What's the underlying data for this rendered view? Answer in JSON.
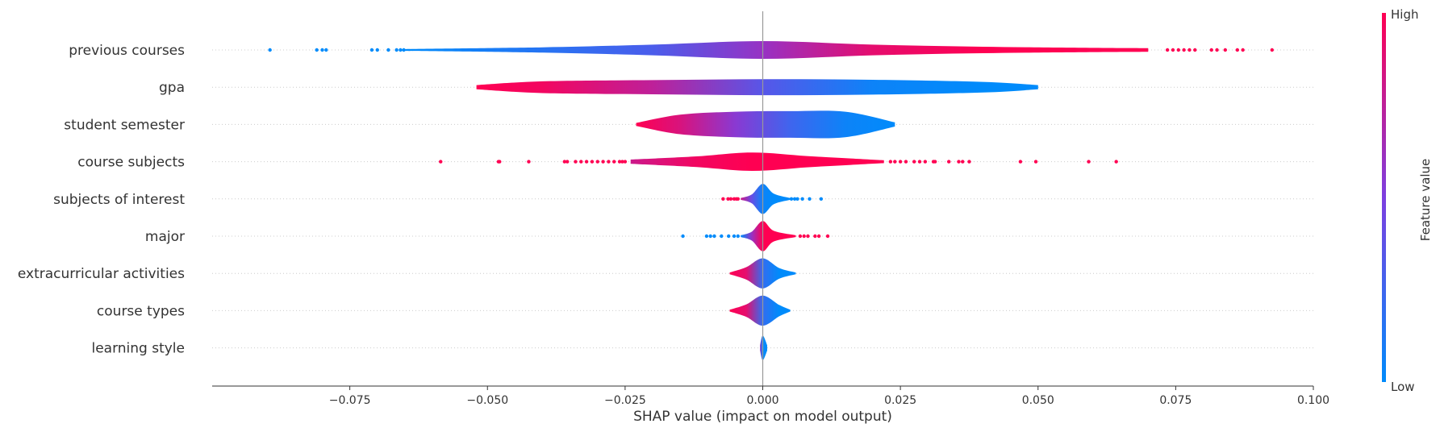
{
  "chart_data": {
    "type": "violin",
    "title": "",
    "xlabel": "SHAP value (impact on model output)",
    "xlim": [
      -0.1,
      0.1
    ],
    "xticks": [
      -0.075,
      -0.05,
      -0.025,
      0.0,
      0.025,
      0.05,
      0.075,
      0.1
    ],
    "xtick_labels": [
      "−0.075",
      "−0.050",
      "−0.025",
      "0.000",
      "0.025",
      "0.050",
      "0.075",
      "0.100"
    ],
    "zero_line": 0.0,
    "grid": false,
    "colorbar": {
      "label": "Feature value",
      "high_label": "High",
      "low_label": "Low",
      "low_color": "#008bfb",
      "mid_color": "#7d3fe0",
      "high_color": "#ff0052"
    },
    "features": [
      {
        "name": "previous courses",
        "range": [
          -0.065,
          0.07
        ],
        "violin": [
          [
            -0.065,
            0.05,
            0.0
          ],
          [
            -0.04,
            0.15,
            0.15
          ],
          [
            -0.02,
            0.3,
            0.3
          ],
          [
            0.0,
            0.5,
            0.6
          ],
          [
            0.02,
            0.3,
            0.9
          ],
          [
            0.04,
            0.18,
            1.0
          ],
          [
            0.06,
            0.12,
            1.0
          ],
          [
            0.07,
            0.1,
            1.0
          ]
        ],
        "outliers_low": [
          -0.0895,
          -0.081,
          -0.08,
          -0.0793,
          -0.071,
          -0.07,
          -0.068,
          -0.0665,
          -0.0658,
          -0.0652
        ],
        "outliers_high": [
          0.0735,
          0.0745,
          0.0755,
          0.0765,
          0.0775,
          0.0785,
          0.0815,
          0.0825,
          0.084,
          0.0862,
          0.0872,
          0.0925
        ]
      },
      {
        "name": "gpa",
        "range": [
          -0.052,
          0.05
        ],
        "violin": [
          [
            -0.052,
            0.12,
            1.0
          ],
          [
            -0.04,
            0.33,
            0.95
          ],
          [
            -0.02,
            0.4,
            0.75
          ],
          [
            0.0,
            0.45,
            0.35
          ],
          [
            0.02,
            0.42,
            0.05
          ],
          [
            0.04,
            0.3,
            0.0
          ],
          [
            0.05,
            0.12,
            0.0
          ]
        ],
        "outliers_low": [],
        "outliers_high": []
      },
      {
        "name": "student semester",
        "range": [
          -0.023,
          0.024
        ],
        "violin": [
          [
            -0.023,
            0.08,
            1.0
          ],
          [
            -0.015,
            0.55,
            0.85
          ],
          [
            -0.005,
            0.72,
            0.55
          ],
          [
            0.005,
            0.75,
            0.25
          ],
          [
            0.015,
            0.72,
            0.05
          ],
          [
            0.024,
            0.12,
            0.0
          ]
        ],
        "outliers_low": [],
        "outliers_high": []
      },
      {
        "name": "course subjects",
        "range": [
          -0.024,
          0.022
        ],
        "violin": [
          [
            -0.024,
            0.12,
            0.8
          ],
          [
            -0.012,
            0.3,
            0.95
          ],
          [
            -0.002,
            0.52,
            1.0
          ],
          [
            0.008,
            0.32,
            1.0
          ],
          [
            0.016,
            0.18,
            1.0
          ],
          [
            0.022,
            0.08,
            1.0
          ]
        ],
        "outliers_low": [
          -0.0585,
          -0.048,
          -0.0478,
          -0.0425,
          -0.036,
          -0.0355,
          -0.034,
          -0.033,
          -0.032,
          -0.031,
          -0.03,
          -0.029,
          -0.028,
          -0.027,
          -0.026,
          -0.0255,
          -0.025
        ],
        "outliers_high": [
          0.0232,
          0.024,
          0.025,
          0.026,
          0.0275,
          0.0285,
          0.0295,
          0.031,
          0.0313,
          0.0338,
          0.0356,
          0.0363,
          0.0375,
          0.0468,
          0.0496,
          0.0592,
          0.0642
        ]
      },
      {
        "name": "subjects of interest",
        "range": [
          -0.004,
          0.005
        ],
        "violin": [
          [
            -0.004,
            0.05,
            0.8
          ],
          [
            -0.002,
            0.25,
            0.4
          ],
          [
            0.0,
            0.85,
            0.05
          ],
          [
            0.002,
            0.3,
            0.0
          ],
          [
            0.005,
            0.05,
            0.0
          ]
        ],
        "outliers_low": [
          -0.0072,
          -0.0063,
          -0.0058,
          -0.0052,
          -0.0048,
          -0.0045
        ],
        "outliers_high": [
          0.0052,
          0.0058,
          0.0063,
          0.0072,
          0.0085,
          0.0106
        ]
      },
      {
        "name": "major",
        "range": [
          -0.004,
          0.006
        ],
        "violin": [
          [
            -0.004,
            0.05,
            0.0
          ],
          [
            -0.002,
            0.25,
            0.6
          ],
          [
            0.0,
            0.85,
            1.0
          ],
          [
            0.002,
            0.3,
            1.0
          ],
          [
            0.006,
            0.05,
            1.0
          ]
        ],
        "outliers_low": [
          -0.0145,
          -0.0102,
          -0.0095,
          -0.0088,
          -0.0075,
          -0.0062,
          -0.0052,
          -0.0045
        ],
        "outliers_high": [
          0.0068,
          0.0075,
          0.0082,
          0.0095,
          0.0102,
          0.0118
        ]
      },
      {
        "name": "extracurricular activities",
        "range": [
          -0.006,
          0.006
        ],
        "violin": [
          [
            -0.006,
            0.05,
            1.0
          ],
          [
            -0.003,
            0.35,
            0.9
          ],
          [
            0.0,
            0.85,
            0.2
          ],
          [
            0.003,
            0.3,
            0.0
          ],
          [
            0.006,
            0.05,
            0.0
          ]
        ],
        "outliers_low": [],
        "outliers_high": []
      },
      {
        "name": "course types",
        "range": [
          -0.006,
          0.005
        ],
        "violin": [
          [
            -0.006,
            0.05,
            1.0
          ],
          [
            -0.003,
            0.35,
            0.9
          ],
          [
            0.0,
            0.85,
            0.2
          ],
          [
            0.003,
            0.32,
            0.0
          ],
          [
            0.005,
            0.05,
            0.0
          ]
        ],
        "outliers_low": [],
        "outliers_high": []
      },
      {
        "name": "learning style",
        "range": [
          -0.0005,
          0.0008
        ],
        "violin": [
          [
            -0.0005,
            0.15,
            0.6
          ],
          [
            0.0,
            0.7,
            0.0
          ],
          [
            0.0008,
            0.15,
            0.0
          ]
        ],
        "outliers_low": [],
        "outliers_high": []
      }
    ]
  }
}
